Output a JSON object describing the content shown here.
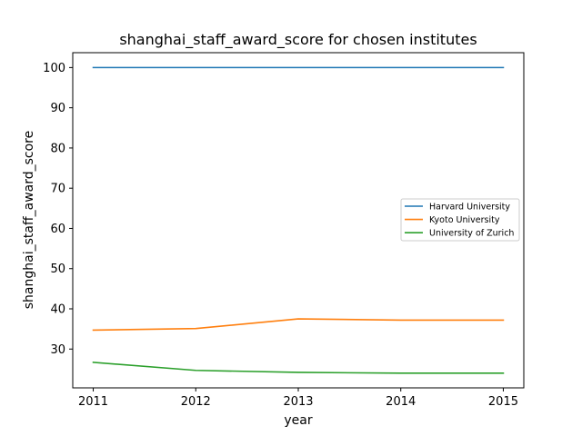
{
  "chart_data": {
    "type": "line",
    "title": "shanghai_staff_award_score for chosen institutes",
    "xlabel": "year",
    "ylabel": "shanghai_staff_award_score",
    "x": [
      2011,
      2012,
      2013,
      2014,
      2015
    ],
    "xticks": [
      "2011",
      "2012",
      "2013",
      "2014",
      "2015"
    ],
    "yticks": [
      "30",
      "40",
      "50",
      "60",
      "70",
      "80",
      "90",
      "100"
    ],
    "xlim": [
      2010.8,
      2015.2
    ],
    "ylim": [
      20.35,
      103.7
    ],
    "grid": false,
    "legend_position": "center-right",
    "series": [
      {
        "name": "Harvard University",
        "color": "#1f77b4",
        "values": [
          100.0,
          100.0,
          100.0,
          100.0,
          100.0
        ]
      },
      {
        "name": "Kyoto University",
        "color": "#ff7f0e",
        "values": [
          34.7,
          35.1,
          37.5,
          37.2,
          37.2
        ]
      },
      {
        "name": "University of Zurich",
        "color": "#2ca02c",
        "values": [
          26.7,
          24.7,
          24.2,
          24.0,
          24.0
        ]
      }
    ]
  }
}
